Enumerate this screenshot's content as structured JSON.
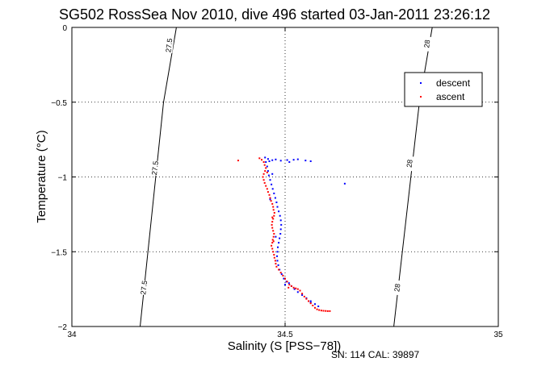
{
  "chart_data": {
    "type": "scatter",
    "title": "SG502 RossSea Nov 2010, dive 496 started 03-Jan-2011 23:26:12",
    "xlabel": "Salinity (S [PSS−78])",
    "ylabel": "Temperature (°C)",
    "xlim": [
      34,
      35
    ],
    "ylim": [
      -2,
      0
    ],
    "x_ticks": [
      {
        "value": 34,
        "label": "34"
      },
      {
        "value": 34.5,
        "label": "34.5"
      },
      {
        "value": 35,
        "label": "35"
      }
    ],
    "y_ticks": [
      {
        "value": 0,
        "label": "0"
      },
      {
        "value": -0.5,
        "label": "−0.5"
      },
      {
        "value": -1,
        "label": "−1"
      },
      {
        "value": -1.5,
        "label": "−1.5"
      },
      {
        "value": -2,
        "label": "−2"
      }
    ],
    "grid": "dotted",
    "legend_position": "top-right",
    "density_contours": [
      {
        "label": "27.5",
        "points": [
          [
            34.16,
            -2.0
          ],
          [
            34.215,
            -0.5
          ],
          [
            34.245,
            0.0
          ]
        ],
        "label_positions": [
          [
            34.228,
            -0.12
          ],
          [
            34.195,
            -0.94
          ],
          [
            34.169,
            -1.74
          ]
        ]
      },
      {
        "label": "28",
        "points": [
          [
            34.755,
            -2.0
          ],
          [
            34.815,
            -0.5
          ],
          [
            34.845,
            0.0
          ]
        ],
        "label_positions": [
          [
            34.833,
            -0.11
          ],
          [
            34.792,
            -0.91
          ],
          [
            34.763,
            -1.74
          ]
        ]
      }
    ],
    "series": [
      {
        "name": "descent",
        "color": "#0000ff",
        "points": [
          [
            34.453,
            -0.87
          ],
          [
            34.46,
            -0.88
          ],
          [
            34.463,
            -0.895
          ],
          [
            34.47,
            -0.888
          ],
          [
            34.478,
            -0.883
          ],
          [
            34.49,
            -0.891
          ],
          [
            34.505,
            -0.887
          ],
          [
            34.52,
            -0.885
          ],
          [
            34.53,
            -0.882
          ],
          [
            34.548,
            -0.89
          ],
          [
            34.56,
            -0.895
          ],
          [
            34.51,
            -0.9
          ],
          [
            34.64,
            -1.045
          ],
          [
            34.455,
            -0.9
          ],
          [
            34.458,
            -0.93
          ],
          [
            34.46,
            -0.96
          ],
          [
            34.462,
            -0.99
          ],
          [
            34.465,
            -1.02
          ],
          [
            34.468,
            -1.05
          ],
          [
            34.471,
            -1.08
          ],
          [
            34.474,
            -1.11
          ],
          [
            34.477,
            -1.14
          ],
          [
            34.48,
            -1.17
          ],
          [
            34.482,
            -1.2
          ],
          [
            34.485,
            -1.23
          ],
          [
            34.488,
            -1.26
          ],
          [
            34.49,
            -1.29
          ],
          [
            34.491,
            -1.32
          ],
          [
            34.49,
            -1.35
          ],
          [
            34.489,
            -1.38
          ],
          [
            34.487,
            -1.41
          ],
          [
            34.485,
            -1.44
          ],
          [
            34.483,
            -1.47
          ],
          [
            34.482,
            -1.5
          ],
          [
            34.481,
            -1.53
          ],
          [
            34.482,
            -1.56
          ],
          [
            34.484,
            -1.59
          ],
          [
            34.487,
            -1.62
          ],
          [
            34.492,
            -1.65
          ],
          [
            34.497,
            -1.68
          ],
          [
            34.503,
            -1.7
          ],
          [
            34.509,
            -1.71
          ],
          [
            34.515,
            -1.73
          ],
          [
            34.522,
            -1.75
          ],
          [
            34.53,
            -1.77
          ],
          [
            34.54,
            -1.79
          ],
          [
            34.55,
            -1.81
          ],
          [
            34.56,
            -1.83
          ],
          [
            34.57,
            -1.85
          ],
          [
            34.578,
            -1.865
          ],
          [
            34.465,
            -1.15
          ],
          [
            34.478,
            -1.4
          ],
          [
            34.5,
            -1.72
          ],
          [
            34.56,
            -1.84
          ],
          [
            34.47,
            -0.98
          ]
        ]
      },
      {
        "name": "ascent",
        "color": "#ff0000",
        "points": [
          [
            34.39,
            -0.89
          ],
          [
            34.44,
            -0.875
          ],
          [
            34.445,
            -0.885
          ],
          [
            34.45,
            -0.9
          ],
          [
            34.452,
            -0.92
          ],
          [
            34.455,
            -0.94
          ],
          [
            34.453,
            -0.96
          ],
          [
            34.45,
            -0.98
          ],
          [
            34.448,
            -1.0
          ],
          [
            34.45,
            -1.02
          ],
          [
            34.452,
            -1.04
          ],
          [
            34.455,
            -1.06
          ],
          [
            34.458,
            -1.08
          ],
          [
            34.46,
            -1.1
          ],
          [
            34.463,
            -1.12
          ],
          [
            34.465,
            -1.14
          ],
          [
            34.467,
            -1.16
          ],
          [
            34.47,
            -1.18
          ],
          [
            34.472,
            -1.2
          ],
          [
            34.473,
            -1.22
          ],
          [
            34.475,
            -1.24
          ],
          [
            34.474,
            -1.26
          ],
          [
            34.472,
            -1.28
          ],
          [
            34.47,
            -1.3
          ],
          [
            34.469,
            -1.32
          ],
          [
            34.47,
            -1.34
          ],
          [
            34.472,
            -1.36
          ],
          [
            34.474,
            -1.38
          ],
          [
            34.473,
            -1.4
          ],
          [
            34.471,
            -1.42
          ],
          [
            34.47,
            -1.44
          ],
          [
            34.468,
            -1.46
          ],
          [
            34.47,
            -1.48
          ],
          [
            34.472,
            -1.5
          ],
          [
            34.474,
            -1.52
          ],
          [
            34.475,
            -1.54
          ],
          [
            34.477,
            -1.56
          ],
          [
            34.478,
            -1.58
          ],
          [
            34.48,
            -1.6
          ],
          [
            34.485,
            -1.62
          ],
          [
            34.49,
            -1.64
          ],
          [
            34.495,
            -1.66
          ],
          [
            34.5,
            -1.68
          ],
          [
            34.505,
            -1.7
          ],
          [
            34.51,
            -1.72
          ],
          [
            34.515,
            -1.73
          ],
          [
            34.52,
            -1.74
          ],
          [
            34.525,
            -1.745
          ],
          [
            34.53,
            -1.75
          ],
          [
            34.535,
            -1.76
          ],
          [
            34.54,
            -1.78
          ],
          [
            34.545,
            -1.8
          ],
          [
            34.55,
            -1.815
          ],
          [
            34.555,
            -1.83
          ],
          [
            34.56,
            -1.845
          ],
          [
            34.565,
            -1.86
          ],
          [
            34.57,
            -1.875
          ],
          [
            34.575,
            -1.885
          ],
          [
            34.58,
            -1.89
          ],
          [
            34.585,
            -1.893
          ],
          [
            34.59,
            -1.895
          ],
          [
            34.595,
            -1.896
          ],
          [
            34.6,
            -1.897
          ],
          [
            34.605,
            -1.897
          ],
          [
            34.458,
            -0.97
          ],
          [
            34.47,
            -1.27
          ],
          [
            34.473,
            -1.43
          ],
          [
            34.508,
            -1.74
          ]
        ]
      }
    ]
  },
  "footnote": "SN: 114  CAL: 39897"
}
